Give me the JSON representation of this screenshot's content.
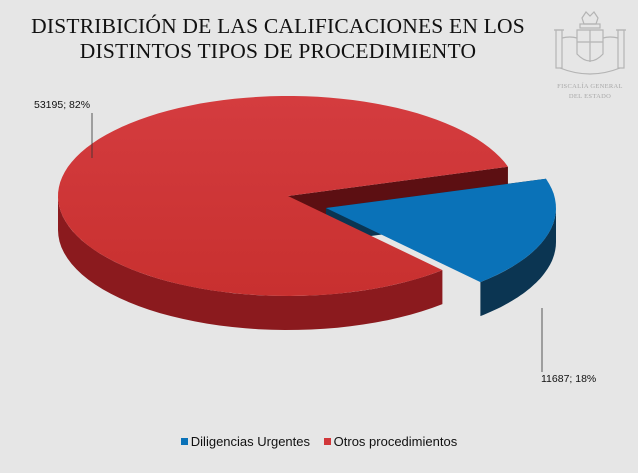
{
  "title": {
    "line1": "DISTRIBICIÓN DE LAS CALIFICACIONES EN LOS",
    "line2": "DISTINTOS TIPOS DE PROCEDIMIENTO"
  },
  "logo": {
    "icon": "royal-coat-of-arms-icon",
    "text_line1": "FISCALÍA GENERAL",
    "text_line2": "DEL ESTADO"
  },
  "chart_data": {
    "type": "pie",
    "style": "3d-exploded",
    "title": "DISTRIBICIÓN DE LAS CALIFICACIONES EN LOS DISTINTOS TIPOS DE PROCEDIMIENTO",
    "legend_position": "bottom",
    "slices": [
      {
        "name": "Diligencias Urgentes",
        "value": 11687,
        "percent": 18,
        "label": "11687; 18%",
        "color": "#0a72b8",
        "side_color": "#0b3552"
      },
      {
        "name": "Otros procedimientos",
        "value": 53195,
        "percent": 82,
        "label": "53195; 82%",
        "color": "#d1373a",
        "side_color": "#8b1a1e"
      }
    ]
  },
  "legend": {
    "items": [
      {
        "label": "Diligencias Urgentes",
        "color": "#0a72b8"
      },
      {
        "label": "Otros procedimientos",
        "color": "#d1373a"
      }
    ]
  }
}
